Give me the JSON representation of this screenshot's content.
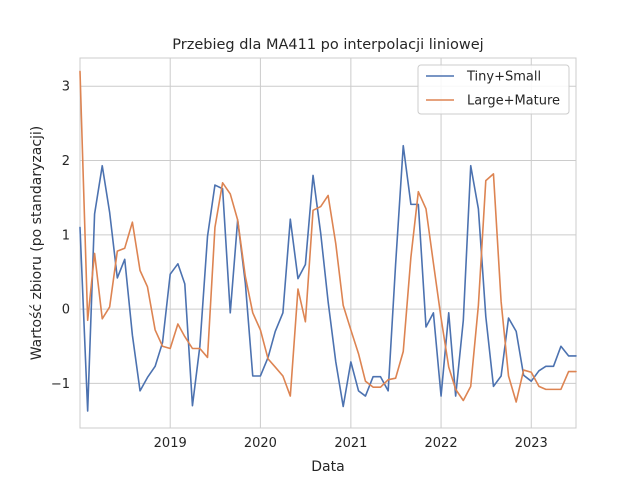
{
  "chart_data": {
    "type": "line",
    "title": "Przebieg dla MA411 po interpolacji liniowej",
    "xlabel": "Data",
    "ylabel": "Wartość zbioru (po standaryzacji)",
    "x_ticks": [
      "2019",
      "2020",
      "2021",
      "2022",
      "2023"
    ],
    "y_ticks": [
      "−1",
      "0",
      "1",
      "2",
      "3"
    ],
    "ylim": [
      -1.6,
      3.38
    ],
    "xlim": [
      "2018-01-01",
      "2023-07-01"
    ],
    "grid": true,
    "legend_position": "top-right",
    "x": [
      "2018-01",
      "2018-02",
      "2018-03",
      "2018-04",
      "2018-05",
      "2018-06",
      "2018-07",
      "2018-08",
      "2018-09",
      "2018-10",
      "2018-11",
      "2018-12",
      "2019-01",
      "2019-02",
      "2019-03",
      "2019-04",
      "2019-05",
      "2019-06",
      "2019-07",
      "2019-08",
      "2019-09",
      "2019-10",
      "2019-11",
      "2019-12",
      "2020-01",
      "2020-02",
      "2020-03",
      "2020-04",
      "2020-05",
      "2020-06",
      "2020-07",
      "2020-08",
      "2020-09",
      "2020-10",
      "2020-11",
      "2020-12",
      "2021-01",
      "2021-02",
      "2021-03",
      "2021-04",
      "2021-05",
      "2021-06",
      "2021-07",
      "2021-08",
      "2021-09",
      "2021-10",
      "2021-11",
      "2021-12",
      "2022-01",
      "2022-02",
      "2022-03",
      "2022-04",
      "2022-05",
      "2022-06",
      "2022-07",
      "2022-08",
      "2022-09",
      "2022-10",
      "2022-11",
      "2022-12",
      "2023-01",
      "2023-02",
      "2023-03",
      "2023-04",
      "2023-05",
      "2023-06",
      "2023-07"
    ],
    "series": [
      {
        "name": "Tiny+Small",
        "color": "#4c72b0",
        "values": [
          1.1,
          -1.37,
          1.28,
          1.93,
          1.3,
          0.42,
          0.67,
          -0.35,
          -1.1,
          -0.92,
          -0.77,
          -0.45,
          0.47,
          0.61,
          0.34,
          -1.3,
          -0.5,
          0.98,
          1.67,
          1.62,
          -0.05,
          1.2,
          0.35,
          -0.9,
          -0.9,
          -0.65,
          -0.3,
          -0.05,
          1.21,
          0.41,
          0.6,
          1.8,
          1.02,
          0.1,
          -0.71,
          -1.31,
          -0.71,
          -1.1,
          -1.17,
          -0.91,
          -0.91,
          -1.1,
          0.6,
          2.2,
          1.41,
          1.41,
          -0.24,
          -0.05,
          -1.17,
          -0.05,
          -1.17,
          -0.15,
          1.93,
          1.35,
          -0.1,
          -1.04,
          -0.9,
          -0.12,
          -0.3,
          -0.89,
          -0.97,
          -0.83,
          -0.77,
          -0.77,
          -0.5,
          -0.63,
          -0.63
        ]
      },
      {
        "name": "Large+Mature",
        "color": "#dd8452",
        "values": [
          3.2,
          -0.15,
          0.75,
          -0.13,
          0.03,
          0.78,
          0.82,
          1.17,
          0.52,
          0.3,
          -0.28,
          -0.5,
          -0.53,
          -0.2,
          -0.37,
          -0.53,
          -0.53,
          -0.65,
          1.1,
          1.7,
          1.55,
          1.2,
          0.44,
          -0.05,
          -0.28,
          -0.67,
          -0.78,
          -0.9,
          -1.17,
          0.27,
          -0.17,
          1.33,
          1.38,
          1.53,
          0.88,
          0.05,
          -0.28,
          -0.6,
          -0.97,
          -1.05,
          -1.05,
          -0.95,
          -0.93,
          -0.57,
          0.7,
          1.58,
          1.35,
          0.62,
          -0.12,
          -0.78,
          -1.08,
          -1.23,
          -1.04,
          0.05,
          1.73,
          1.82,
          0.1,
          -0.9,
          -1.25,
          -0.82,
          -0.85,
          -1.04,
          -1.08,
          -1.08,
          -1.08,
          -0.84,
          -0.84
        ]
      }
    ]
  }
}
